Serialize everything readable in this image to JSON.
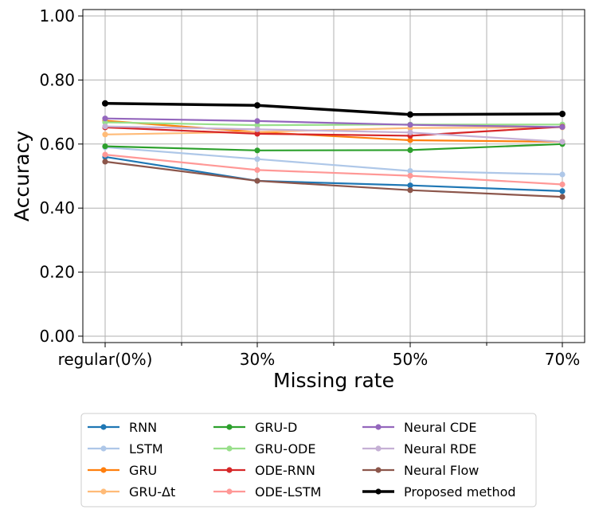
{
  "chart_data": {
    "type": "line",
    "categories": [
      "regular(0%)",
      "30%",
      "50%",
      "70%"
    ],
    "xlabel": "Missing rate",
    "ylabel": "Accuracy",
    "ylim": [
      -0.02,
      1.02
    ],
    "yticks": [
      0.0,
      0.2,
      0.4,
      0.6,
      0.8,
      1.0
    ],
    "ytick_labels": [
      "0.00",
      "0.20",
      "0.40",
      "0.60",
      "0.80",
      "1.00"
    ],
    "grid": true,
    "legend_placement": "below",
    "series": [
      {
        "name": "RNN",
        "color": "#1f77b4",
        "values": [
          0.56,
          0.485,
          0.471,
          0.453
        ]
      },
      {
        "name": "LSTM",
        "color": "#aec7e8",
        "values": [
          0.59,
          0.553,
          0.516,
          0.505
        ]
      },
      {
        "name": "GRU",
        "color": "#ff7f0e",
        "values": [
          0.673,
          0.637,
          0.612,
          0.607
        ]
      },
      {
        "name": "GRU-Δt",
        "color": "#ffbb78",
        "values": [
          0.63,
          0.638,
          0.65,
          0.652
        ]
      },
      {
        "name": "GRU-D",
        "color": "#2ca02c",
        "values": [
          0.593,
          0.58,
          0.581,
          0.6
        ]
      },
      {
        "name": "GRU-ODE",
        "color": "#98df8a",
        "values": [
          0.668,
          0.659,
          0.661,
          0.661
        ]
      },
      {
        "name": "ODE-RNN",
        "color": "#d62728",
        "values": [
          0.652,
          0.632,
          0.626,
          0.654
        ]
      },
      {
        "name": "ODE-LSTM",
        "color": "#ff9896",
        "values": [
          0.567,
          0.519,
          0.501,
          0.474
        ]
      },
      {
        "name": "Neural CDE",
        "color": "#9467bd",
        "values": [
          0.68,
          0.672,
          0.66,
          0.653
        ]
      },
      {
        "name": "Neural RDE",
        "color": "#c5b0d5",
        "values": [
          0.655,
          0.646,
          0.636,
          0.607
        ]
      },
      {
        "name": "Neural Flow",
        "color": "#8c564b",
        "values": [
          0.545,
          0.485,
          0.456,
          0.435
        ]
      },
      {
        "name": "Proposed method",
        "color": "#000000",
        "values": [
          0.727,
          0.721,
          0.692,
          0.694
        ],
        "bold": true
      }
    ]
  }
}
